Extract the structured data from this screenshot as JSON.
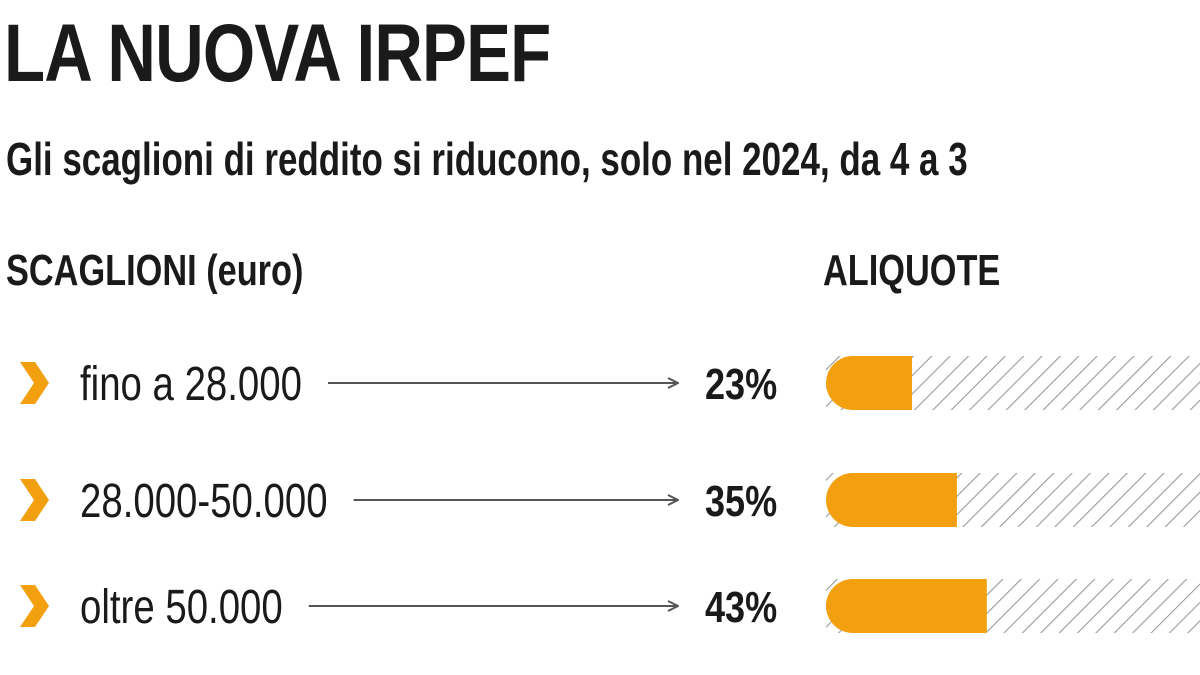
{
  "header": {
    "title": "LA NUOVA IRPEF",
    "subtitle": "Gli scaglioni di reddito si riducono, solo nel 2024, da 4 a 3"
  },
  "columns": {
    "left": "SCAGLIONI (euro)",
    "right": "ALIQUOTE"
  },
  "colors": {
    "accent": "#f29f10",
    "hatch": "#9a9a9a",
    "arrow": "#555555",
    "text": "#1a1a1a"
  },
  "chart_data": {
    "type": "bar",
    "orientation": "horizontal",
    "categories": [
      "fino a 28.000",
      "28.000-50.000",
      "oltre 50.000"
    ],
    "values": [
      23,
      35,
      43
    ],
    "value_labels": [
      "23%",
      "35%",
      "43%"
    ],
    "unit": "%",
    "xlim": [
      0,
      100
    ],
    "grid": false,
    "legend": "none",
    "marker_icon": "chevron-right-icon"
  }
}
